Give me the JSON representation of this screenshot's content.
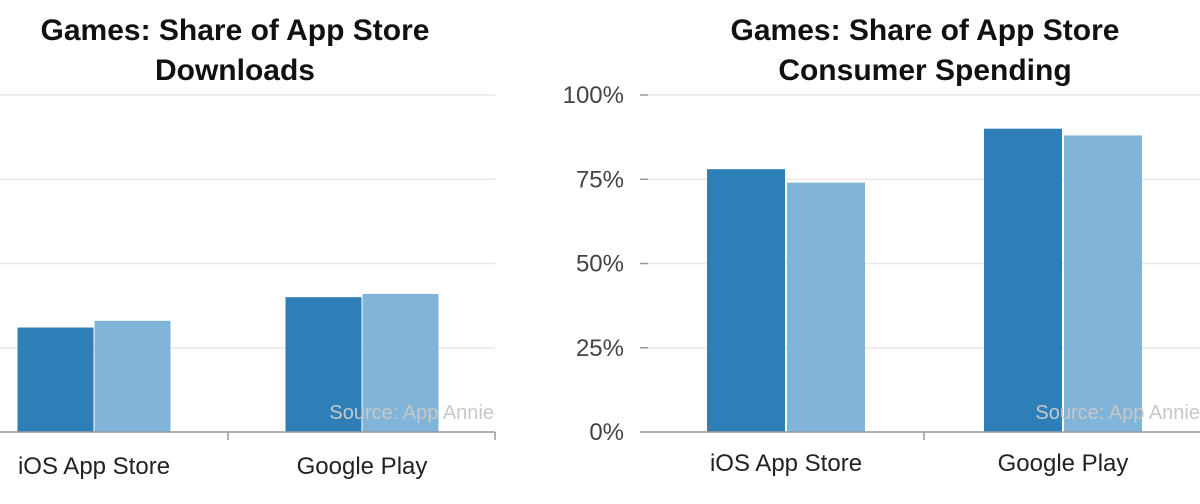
{
  "colors": {
    "series_a": "#2e7fb8",
    "series_b": "#80b4d8",
    "grid": "#e8e8e8",
    "axis": "#999999",
    "source_text": "#c8c8c8"
  },
  "chart_data": [
    {
      "type": "bar",
      "title": "Games: Share of App Store Downloads",
      "title_lines": [
        "Games: Share of App Store",
        "Downloads"
      ],
      "categories": [
        "iOS App Store",
        "Google Play"
      ],
      "series": [
        {
          "values": [
            0.31,
            0.4
          ]
        },
        {
          "values": [
            0.33,
            0.41
          ]
        }
      ],
      "ylim": [
        0,
        1
      ],
      "yticks": [
        0,
        0.25,
        0.5,
        0.75,
        1
      ],
      "ytick_labels_visible": false,
      "grid": true,
      "source": "Source: App Annie"
    },
    {
      "type": "bar",
      "title": "Games: Share of App Store Consumer Spending",
      "title_lines": [
        "Games: Share of App Store",
        "Consumer Spending"
      ],
      "categories": [
        "iOS App Store",
        "Google Play"
      ],
      "series": [
        {
          "values": [
            0.78,
            0.9
          ]
        },
        {
          "values": [
            0.74,
            0.88
          ]
        }
      ],
      "ylim": [
        0,
        1
      ],
      "yticks": [
        0,
        0.25,
        0.5,
        0.75,
        1
      ],
      "ytick_labels": [
        "0%",
        "25%",
        "50%",
        "75%",
        "100%"
      ],
      "grid": true,
      "source": "Source: App Annie"
    }
  ]
}
